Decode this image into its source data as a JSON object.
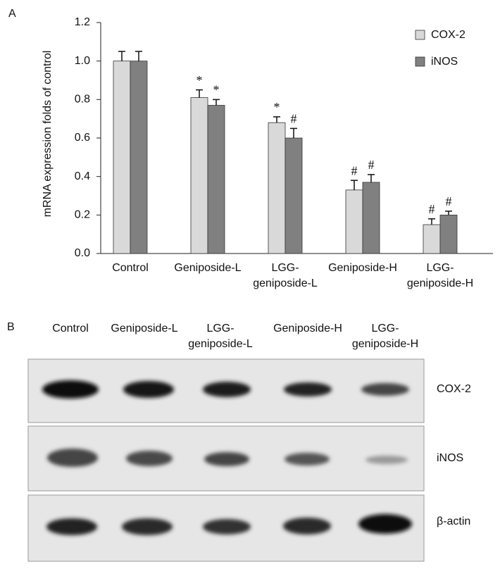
{
  "chart_data": {
    "type": "bar",
    "panel_label": "A",
    "y_label": "mRNA expression folds of control",
    "categories": [
      "Control",
      "Geniposide-L",
      "LGG-geniposide-L",
      "Geniposide-H",
      "LGG-geniposide-H"
    ],
    "series": [
      {
        "name": "COX-2",
        "color": "#d9d9d9",
        "values": [
          1.0,
          0.81,
          0.68,
          0.33,
          0.15
        ],
        "errors": [
          0.05,
          0.04,
          0.03,
          0.05,
          0.03
        ],
        "markers": [
          null,
          "*",
          "*",
          "#",
          "#"
        ]
      },
      {
        "name": "iNOS",
        "color": "#808080",
        "values": [
          1.0,
          0.77,
          0.6,
          0.37,
          0.2
        ],
        "errors": [
          0.05,
          0.03,
          0.05,
          0.04,
          0.02
        ],
        "markers": [
          null,
          "*",
          "#",
          "#",
          "#"
        ]
      }
    ],
    "ylim": [
      0,
      1.2
    ],
    "yticks": [
      {
        "value": 0,
        "label": "0.0"
      },
      {
        "value": 0.2,
        "label": "0.2"
      },
      {
        "value": 0.4,
        "label": "0.4"
      },
      {
        "value": 0.6,
        "label": "0.6"
      },
      {
        "value": 0.8,
        "label": "0.8"
      },
      {
        "value": 1,
        "label": "1.0"
      },
      {
        "value": 1.2,
        "label": "1.2"
      }
    ],
    "legend": "top-right"
  },
  "blot": {
    "panel_label": "B",
    "lanes": [
      "Control",
      "Geniposide-L",
      "LGG-geniposide-L",
      "Geniposide-H",
      "LGG-geniposide-H"
    ],
    "rows": [
      "COX-2",
      "iNOS",
      "β-actin"
    ]
  }
}
